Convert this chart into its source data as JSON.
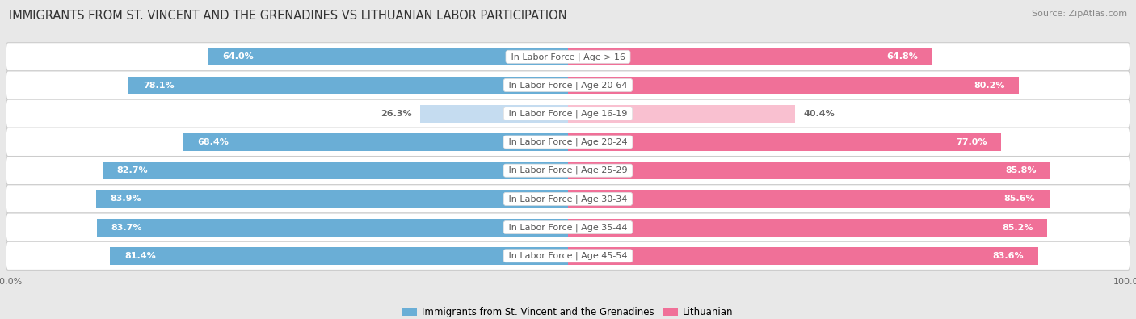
{
  "title": "IMMIGRANTS FROM ST. VINCENT AND THE GRENADINES VS LITHUANIAN LABOR PARTICIPATION",
  "source": "Source: ZipAtlas.com",
  "categories": [
    "In Labor Force | Age > 16",
    "In Labor Force | Age 20-64",
    "In Labor Force | Age 16-19",
    "In Labor Force | Age 20-24",
    "In Labor Force | Age 25-29",
    "In Labor Force | Age 30-34",
    "In Labor Force | Age 35-44",
    "In Labor Force | Age 45-54"
  ],
  "left_values": [
    64.0,
    78.1,
    26.3,
    68.4,
    82.7,
    83.9,
    83.7,
    81.4
  ],
  "right_values": [
    64.8,
    80.2,
    40.4,
    77.0,
    85.8,
    85.6,
    85.2,
    83.6
  ],
  "left_color": "#6aaed6",
  "right_color": "#f07098",
  "left_color_light": "#c5dcf0",
  "right_color_light": "#f9c0d0",
  "left_label": "Immigrants from St. Vincent and the Grenadines",
  "right_label": "Lithuanian",
  "background_color": "#e8e8e8",
  "row_bg_even": "#f5f5f5",
  "row_bg_odd": "#ebebeb",
  "max_value": 100.0,
  "bar_height": 0.62,
  "title_fontsize": 10.5,
  "source_fontsize": 8,
  "label_fontsize": 8,
  "value_fontsize": 8
}
